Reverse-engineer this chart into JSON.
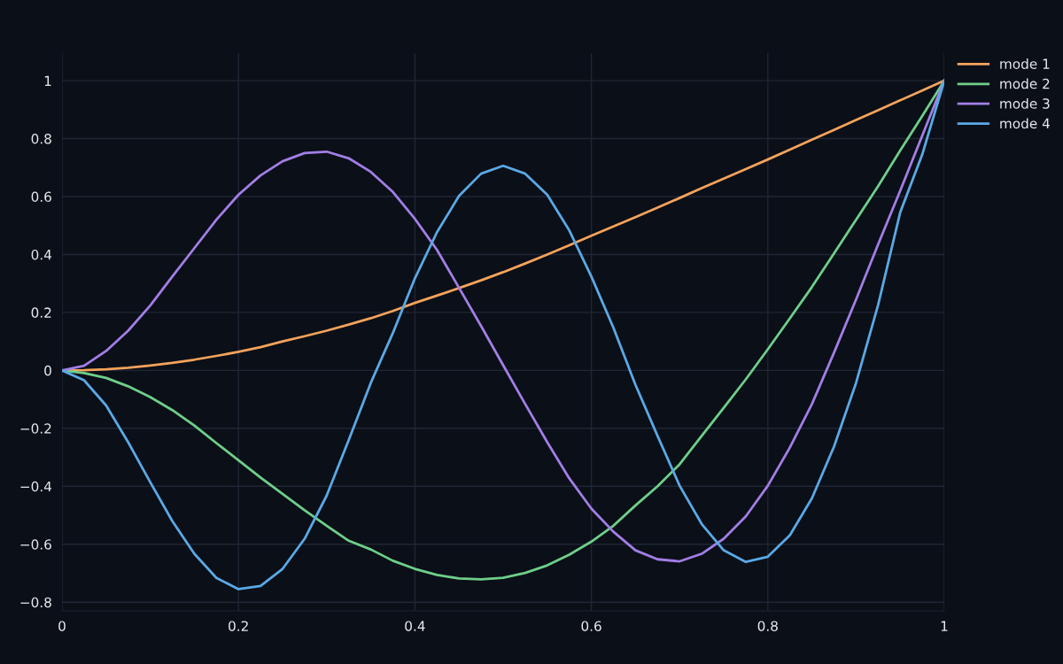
{
  "chart_data": {
    "type": "line",
    "x": [
      0,
      0.025,
      0.05,
      0.075,
      0.1,
      0.125,
      0.15,
      0.175,
      0.2,
      0.225,
      0.25,
      0.275,
      0.3,
      0.325,
      0.35,
      0.375,
      0.4,
      0.425,
      0.45,
      0.475,
      0.5,
      0.525,
      0.55,
      0.575,
      0.6,
      0.625,
      0.65,
      0.675,
      0.7,
      0.725,
      0.75,
      0.775,
      0.8,
      0.825,
      0.85,
      0.875,
      0.9,
      0.925,
      0.95,
      0.975,
      1
    ],
    "series": [
      {
        "name": "mode 1",
        "color": "#f5a35c",
        "values": [
          0,
          0.001,
          0.004,
          0.009,
          0.017,
          0.026,
          0.037,
          0.05,
          0.064,
          0.08,
          0.1,
          0.118,
          0.137,
          0.158,
          0.18,
          0.205,
          0.233,
          0.258,
          0.284,
          0.311,
          0.339,
          0.369,
          0.4,
          0.432,
          0.465,
          0.497,
          0.529,
          0.562,
          0.595,
          0.629,
          0.662,
          0.695,
          0.728,
          0.762,
          0.796,
          0.83,
          0.864,
          0.898,
          0.932,
          0.966,
          1
        ]
      },
      {
        "name": "mode 2",
        "color": "#6ecf8a",
        "values": [
          0,
          -0.009,
          -0.026,
          -0.055,
          -0.092,
          -0.137,
          -0.19,
          -0.251,
          -0.31,
          -0.37,
          -0.426,
          -0.483,
          -0.536,
          -0.588,
          -0.618,
          -0.657,
          -0.685,
          -0.706,
          -0.718,
          -0.721,
          -0.716,
          -0.699,
          -0.673,
          -0.636,
          -0.591,
          -0.536,
          -0.466,
          -0.4,
          -0.324,
          -0.226,
          -0.129,
          -0.031,
          0.073,
          0.18,
          0.288,
          0.404,
          0.52,
          0.636,
          0.759,
          0.878,
          1
        ]
      },
      {
        "name": "mode 3",
        "color": "#a27ee6",
        "values": [
          0,
          0.016,
          0.067,
          0.137,
          0.224,
          0.324,
          0.422,
          0.52,
          0.606,
          0.673,
          0.722,
          0.75,
          0.755,
          0.732,
          0.685,
          0.616,
          0.523,
          0.416,
          0.285,
          0.153,
          0.018,
          -0.116,
          -0.248,
          -0.373,
          -0.477,
          -0.557,
          -0.621,
          -0.652,
          -0.659,
          -0.633,
          -0.581,
          -0.504,
          -0.398,
          -0.266,
          -0.116,
          0.061,
          0.245,
          0.435,
          0.62,
          0.81,
          1
        ]
      },
      {
        "name": "mode 4",
        "color": "#5aa9e6",
        "values": [
          0,
          -0.034,
          -0.121,
          -0.248,
          -0.386,
          -0.52,
          -0.633,
          -0.716,
          -0.755,
          -0.744,
          -0.685,
          -0.581,
          -0.432,
          -0.24,
          -0.043,
          0.129,
          0.318,
          0.477,
          0.602,
          0.679,
          0.706,
          0.679,
          0.606,
          0.483,
          0.324,
          0.147,
          -0.05,
          -0.226,
          -0.398,
          -0.53,
          -0.621,
          -0.661,
          -0.643,
          -0.569,
          -0.441,
          -0.263,
          -0.043,
          0.226,
          0.545,
          0.745,
          1
        ]
      }
    ],
    "xlim": [
      0,
      1
    ],
    "xticks": [
      0,
      0.2,
      0.4,
      0.6,
      0.8,
      1
    ],
    "ylim": [
      -0.83,
      1.095
    ],
    "yticks": [
      {
        "value": -0.8,
        "label": "−0.8"
      },
      {
        "value": -0.6,
        "label": "−0.6"
      },
      {
        "value": -0.4,
        "label": "−0.4"
      },
      {
        "value": -0.2,
        "label": "−0.2"
      },
      0,
      0.2,
      0.4,
      0.6,
      0.8,
      1
    ],
    "grid": true,
    "legend": "top right",
    "marker": "none",
    "line_style": "solid"
  }
}
